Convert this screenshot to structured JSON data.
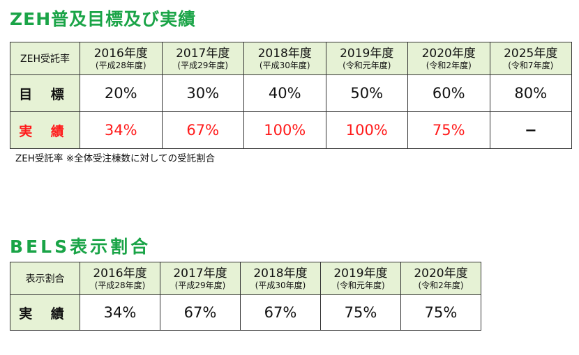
{
  "zeh": {
    "title": "ZEH普及目標及び実績",
    "corner": "ZEH受託率",
    "headers": [
      {
        "year": "2016年度",
        "sub": "(平成28年度)"
      },
      {
        "year": "2017年度",
        "sub": "(平成29年度)"
      },
      {
        "year": "2018年度",
        "sub": "(平成30年度)"
      },
      {
        "year": "2019年度",
        "sub": "(令和元年度)"
      },
      {
        "year": "2020年度",
        "sub": "(令和2年度)"
      },
      {
        "year": "2025年度",
        "sub": "(令和7年度)"
      }
    ],
    "target_label": "目 標",
    "target": [
      "20%",
      "30%",
      "40%",
      "50%",
      "60%",
      "80%"
    ],
    "actual_label": "実 績",
    "actual": [
      "34%",
      "67%",
      "100%",
      "100%",
      "75%",
      "−"
    ],
    "note": "ZEH受託率 ※全体受注棟数に対しての受託割合"
  },
  "bels": {
    "title": "BELS表示割合",
    "corner": "表示割合",
    "headers": [
      {
        "year": "2016年度",
        "sub": "(平成28年度)"
      },
      {
        "year": "2017年度",
        "sub": "(平成29年度)"
      },
      {
        "year": "2018年度",
        "sub": "(平成30年度)"
      },
      {
        "year": "2019年度",
        "sub": "(令和元年度)"
      },
      {
        "year": "2020年度",
        "sub": "(令和2年度)"
      }
    ],
    "actual_label": "実 績",
    "actual": [
      "34%",
      "67%",
      "67%",
      "75%",
      "75%"
    ]
  },
  "colors": {
    "title_green": "#1aa447",
    "header_bg": "#e6f2d5",
    "red": "#ff1a1a"
  }
}
